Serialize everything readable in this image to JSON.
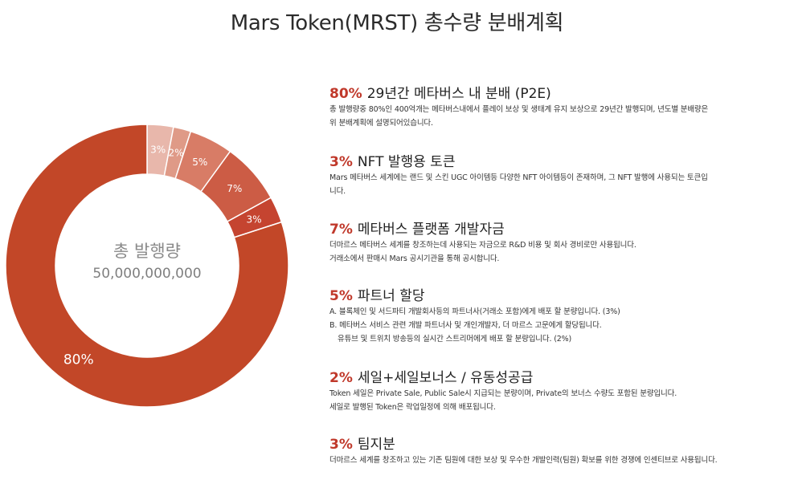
{
  "title": "Mars Token(MRST) 총수량 분배계획",
  "center": {
    "label": "총 발행량",
    "total": "50,000,000,000"
  },
  "chart_data": {
    "type": "pie",
    "title": "Mars Token(MRST) 총수량 분배계획",
    "slices": [
      {
        "label": "3%",
        "value": 3,
        "color": "#e8b7ab"
      },
      {
        "label": "2%",
        "value": 2,
        "color": "#df9a87"
      },
      {
        "label": "5%",
        "value": 5,
        "color": "#d87c66"
      },
      {
        "label": "7%",
        "value": 7,
        "color": "#cc5c45"
      },
      {
        "label": "3%",
        "value": 3,
        "color": "#c54430"
      },
      {
        "label": "80%",
        "value": 80,
        "color": "#c24728"
      }
    ]
  },
  "sections": [
    {
      "pct": "80%",
      "heading": "29년간 메타버스 내 분배 (P2E)",
      "lines": [
        "총 발행량중 80%인 400억개는 메타버스내에서 플레이 보상 및 생태계 유지 보상으로 29년간 발행되며,  년도별 분배량은",
        "위 분배계획에 설명되어있습니다."
      ]
    },
    {
      "pct": "3%",
      "heading": "NFT 발행용 토큰",
      "lines": [
        "Mars 메타버스 세계에는 랜드 및 스킨 UGC 아이템등 다양한 NFT 아이템등이 존재하며, 그 NFT 발행에 사용되는 토큰입",
        "니다."
      ]
    },
    {
      "pct": "7%",
      "heading": "메타버스 플랫폼 개발자금",
      "lines": [
        "더마르스 메타버스 세계를 창조하는데 사용되는 자금으로 R&D 비용 및 회사 경비로만 사용됩니다.",
        "거래소에서 판매시 Mars 공시기관을 통해 공시합니다."
      ]
    },
    {
      "pct": "5%",
      "heading": "파트너 할당",
      "lines": [
        "A. 블록체인 및 서드파티 개발회사등의 파트너사(거래소 포함)에게 배포 할 분량입니다. (3%)",
        "B.  메타버스 서비스 관련 개발 파트너사 및 개인개발자, 더 마르스 고문에게 할당됩니다.",
        "유튜브 및 트위치 방송등의 실시간 스트리머에게 배포 할 분량입니다. (2%)"
      ]
    },
    {
      "pct": "2%",
      "heading": "세일+세일보너스 / 유동성공급",
      "lines": [
        "Token 세일은 Private Sale, Public Sale시 지급되는 분량이며, Private의 보너스 수량도 포함된 분량입니다.",
        "세일로 발행된 Token은 락업일정에 의해 배포됩니다."
      ]
    },
    {
      "pct": "3%",
      "heading": "팀지분",
      "lines": [
        "더마르스 세계를 창조하고 있는 기존 팀원에 대한 보상 및 우수한 개발인력(팀원) 확보를 위한 경쟁에 인센티브로 사용됩니다."
      ]
    }
  ]
}
